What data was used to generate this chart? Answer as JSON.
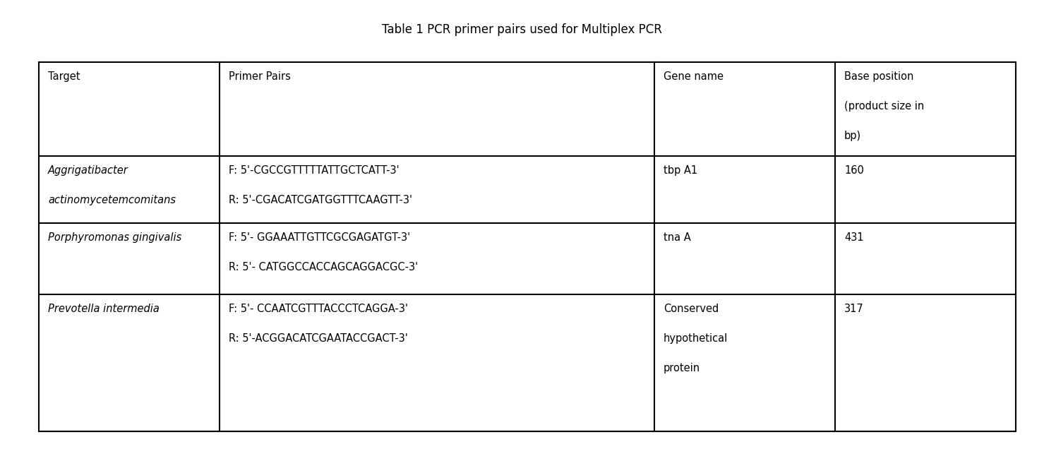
{
  "title": "Table 1 PCR primer pairs used for Multiplex PCR",
  "title_fontsize": 12,
  "title_fontweight": "normal",
  "background_color": "#ffffff",
  "headers": [
    "Target",
    "Primer Pairs",
    "Gene name",
    "Base position\n\n(product size in\n\nbp)"
  ],
  "rows": [
    {
      "target": "Aggrigatibacter\n\nactinomycetemcomitans",
      "target_italic": true,
      "primers": "F: 5'-CGCCGTTTTTATTGCTCATT-3'\n\nR: 5'-CGACATCGATGGTTTCAAGTT-3'",
      "gene": "tbp A1",
      "base": "160"
    },
    {
      "target": "Porphyromonas gingivalis",
      "target_italic": true,
      "primers": "F: 5'- GGAAATTGTTCGCGAGATGT-3'\n\nR: 5'- CATGGCCACCAGCAGGACGC-3'",
      "gene": "tna A",
      "base": "431"
    },
    {
      "target": "Prevotella intermedia",
      "target_italic": true,
      "primers": "F: 5'- CCAATCGTTTACCCTCAGGA-3'\n\nR: 5'-ACGGACATCGAATACCGACT-3'",
      "gene": "Conserved\n\nhypothetical\n\nprotein",
      "base": "317"
    }
  ],
  "font_size": 10.5,
  "header_font_size": 10.5,
  "line_color": "#000000",
  "line_width": 1.5,
  "fig_width": 14.79,
  "fig_height": 6.36,
  "dpi": 100
}
